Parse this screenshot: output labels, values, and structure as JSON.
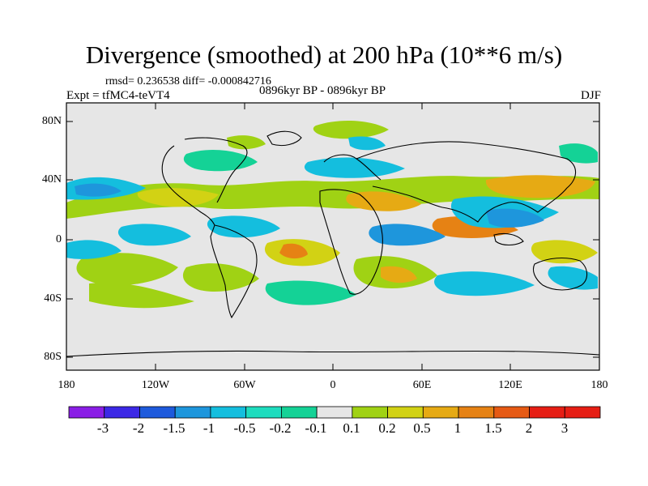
{
  "figure": {
    "title": "Divergence (smoothed) at 200 hPa (10**6 m/s)",
    "stats": "rmsd= 0.236538 diff= -0.000842716",
    "experiment": "Expt = tfMC4-teVT4",
    "period": "0896kyr BP - 0896kyr BP",
    "season": "DJF"
  },
  "axes": {
    "lat_ticks": [
      "80N",
      "40N",
      "0",
      "40S",
      "80S"
    ],
    "lon_ticks": [
      "180",
      "120W",
      "60W",
      "0",
      "60E",
      "120E",
      "180"
    ]
  },
  "colorbar": {
    "labels": [
      "-3",
      "-2",
      "-1.5",
      "-1",
      "-0.5",
      "-0.2",
      "-0.1",
      "0.1",
      "0.2",
      "0.5",
      "1",
      "1.5",
      "2",
      "3"
    ],
    "colors": [
      "#8a1ee6",
      "#3c28e6",
      "#1e5adc",
      "#1e96dc",
      "#14bede",
      "#1edcbe",
      "#14d296",
      "#e6e6e6",
      "#a0d214",
      "#d2d214",
      "#e6aa14",
      "#e68214",
      "#e65a14",
      "#e61e14",
      "#e61e14"
    ]
  },
  "map": {
    "background_color": "#e6e6e6",
    "coast_color": "#000000"
  }
}
